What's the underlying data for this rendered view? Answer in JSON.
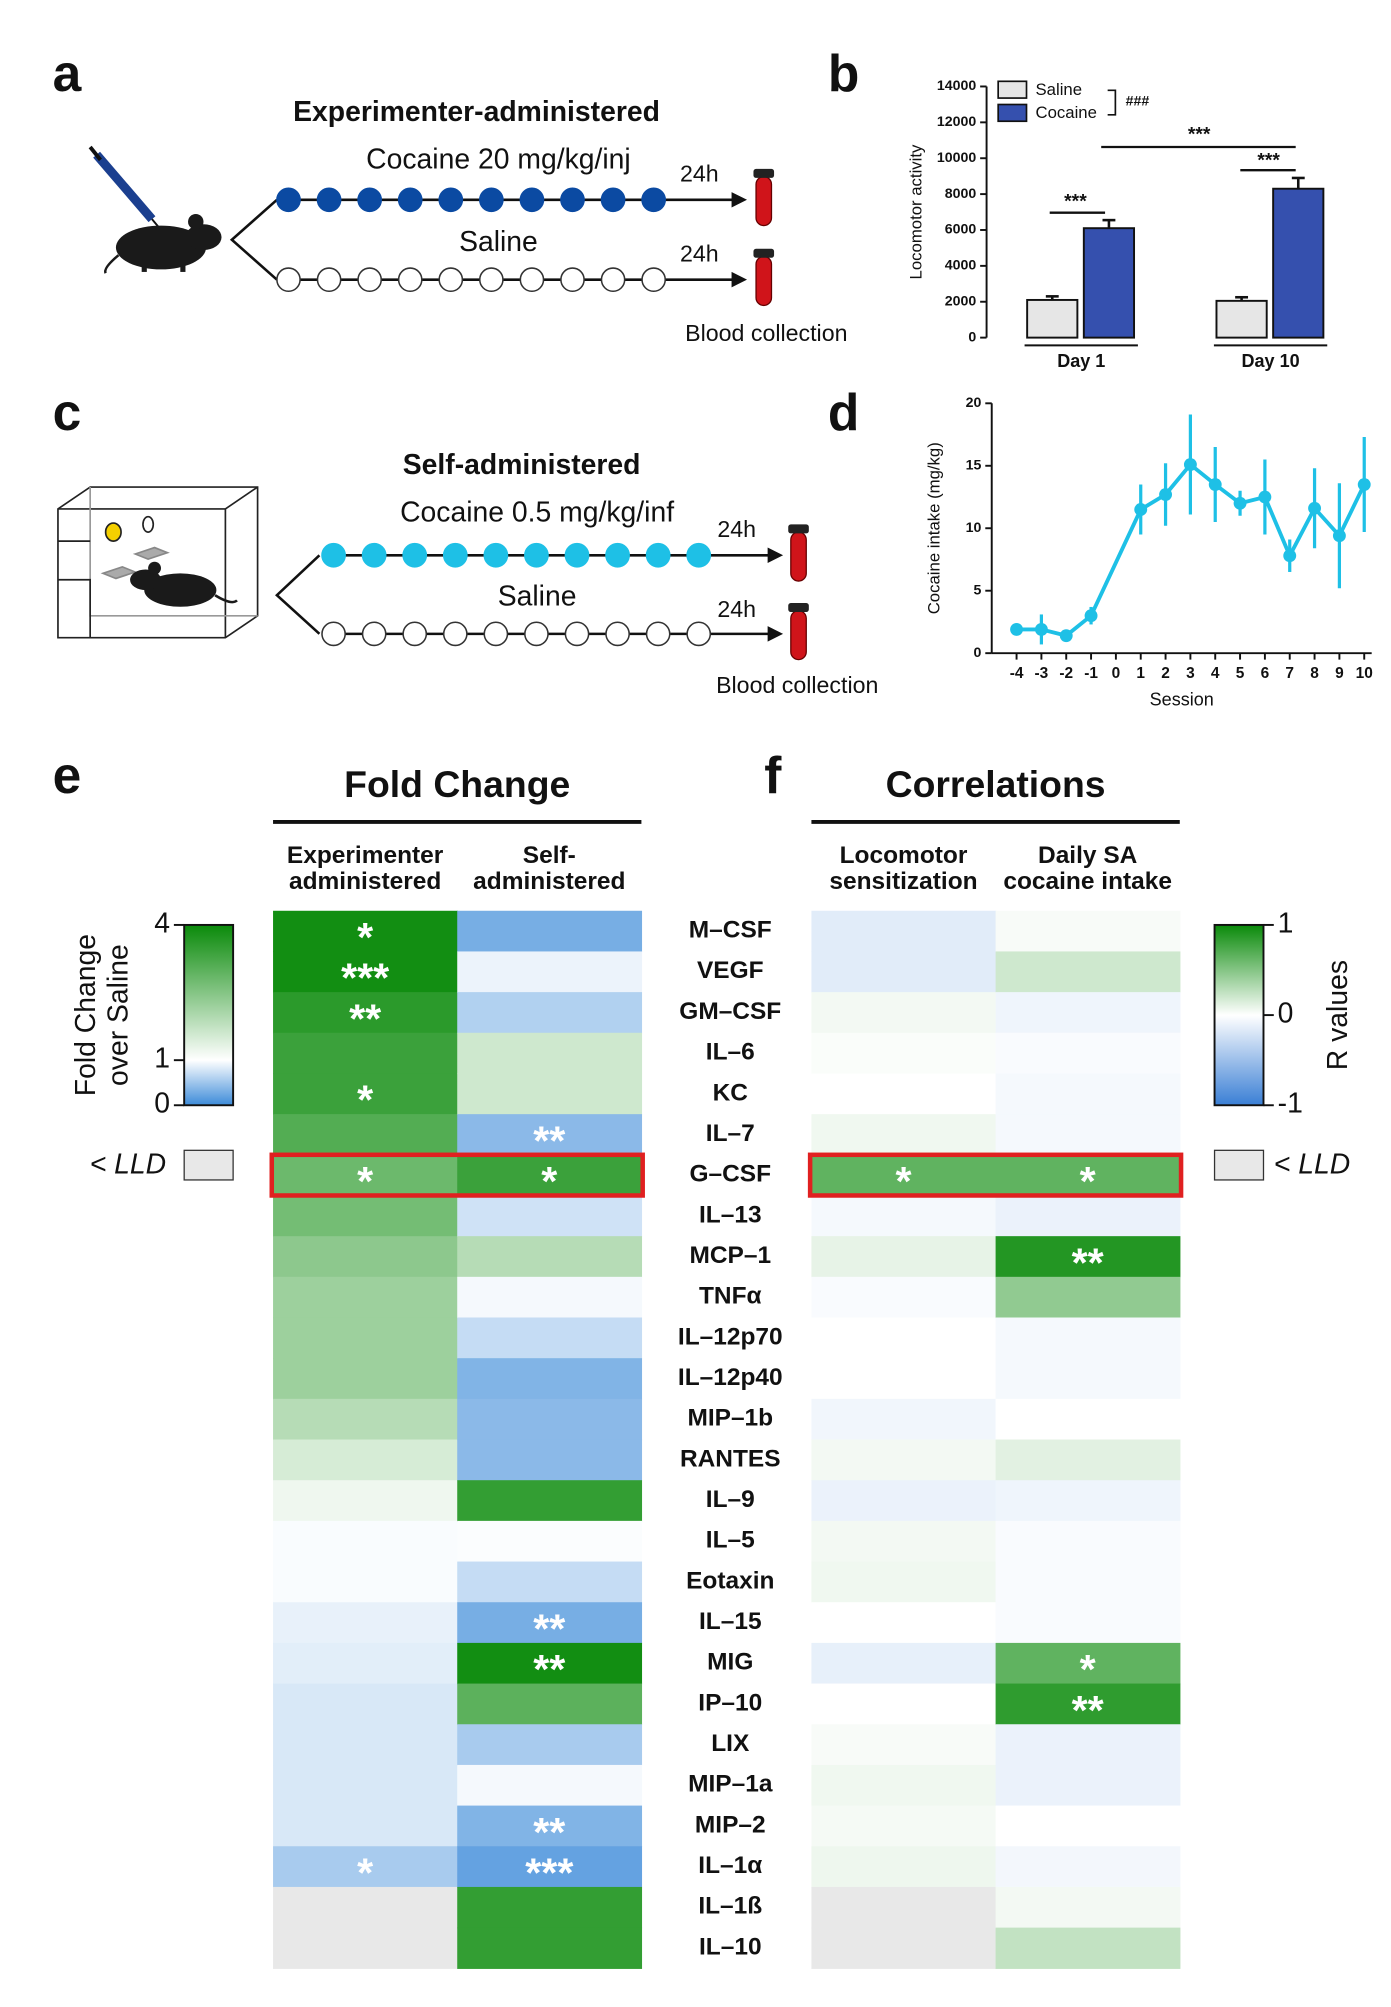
{
  "panel_labels": [
    "a",
    "b",
    "c",
    "d",
    "e",
    "f"
  ],
  "diagrams": [
    {
      "title": "Experimenter-administered",
      "drug": "Cocaine 20 mg/kg/inj",
      "control": "Saline",
      "delay": [
        "24h",
        "24h"
      ],
      "caption": "Blood collection"
    },
    {
      "title": "Self-administered",
      "drug": "Cocaine 0.5 mg/kg/inf",
      "control": "Saline",
      "delay": [
        "24h",
        "24h"
      ],
      "caption": "Blood collection"
    }
  ],
  "rows": [
    "M–CSF",
    "VEGF",
    "GM–CSF",
    "IL–6",
    "KC",
    "IL–7",
    "G–CSF",
    "IL–13",
    "MCP–1",
    "TNFα",
    "IL–12p70",
    "IL–12p40",
    "MIP–1b",
    "RANTES",
    "IL–9",
    "IL–5",
    "Eotaxin",
    "IL–15",
    "MIG",
    "IP–10",
    "LIX",
    "MIP–1a",
    "MIP–2",
    "IL–1α",
    "IL–1ß",
    "IL–10"
  ],
  "chart_data": [
    {
      "type": "bar",
      "ylabel": "Locomotor activity",
      "categories": [
        "Day 1",
        "Day 10"
      ],
      "series": [
        {
          "name": "Saline",
          "color": "#e6e6e6",
          "values": [
            2100,
            2050
          ],
          "errors": [
            200,
            200
          ]
        },
        {
          "name": "Cocaine",
          "color": "#3550ae",
          "values": [
            6100,
            8300
          ],
          "errors": [
            450,
            600
          ]
        }
      ],
      "ylim": [
        0,
        14000
      ],
      "yticks": [
        0,
        2000,
        4000,
        6000,
        8000,
        10000,
        12000,
        14000
      ],
      "annotations": [
        "###",
        "***",
        "***",
        "***"
      ]
    },
    {
      "type": "line",
      "xlabel": "Session",
      "ylabel": "Cocaine intake (mg/kg)",
      "color": "#1ec0e6",
      "x": [
        -4,
        -3,
        -2,
        -1,
        1,
        2,
        3,
        4,
        5,
        6,
        7,
        8,
        9,
        10
      ],
      "values": [
        1.9,
        1.9,
        1.4,
        3.0,
        11.5,
        12.7,
        15.1,
        13.5,
        12.0,
        12.5,
        7.8,
        11.6,
        9.4,
        13.5
      ],
      "errors": [
        0.3,
        1.2,
        0.3,
        0.7,
        2.0,
        2.5,
        4.0,
        3.0,
        1.0,
        3.0,
        1.3,
        3.2,
        4.2,
        3.8
      ],
      "xlim": [
        -5,
        10.3
      ],
      "xticks": [
        -4,
        -3,
        -2,
        -1,
        0,
        1,
        2,
        3,
        4,
        5,
        6,
        7,
        8,
        9,
        10
      ],
      "ylim": [
        0,
        20
      ],
      "yticks": [
        0,
        5,
        10,
        15,
        20
      ]
    },
    {
      "type": "heatmap",
      "title": "Fold Change",
      "highlight": "G–CSF",
      "series": [
        {
          "name": [
            "Experimenter",
            "administered"
          ],
          "values": [
            3.9,
            3.9,
            3.6,
            3.4,
            3.4,
            3.1,
            2.8,
            2.7,
            2.4,
            2.2,
            2.2,
            2.2,
            1.9,
            1.5,
            1.2,
            0.97,
            0.97,
            0.88,
            0.85,
            0.8,
            0.8,
            0.8,
            0.8,
            0.55,
            null,
            null
          ],
          "annotations": [
            "*",
            "***",
            "**",
            null,
            "*",
            null,
            "*",
            null,
            null,
            null,
            null,
            null,
            null,
            null,
            null,
            null,
            null,
            null,
            null,
            null,
            null,
            null,
            null,
            "*",
            null,
            null
          ]
        },
        {
          "name": [
            "Self-",
            "administered"
          ],
          "values": [
            0.3,
            0.9,
            0.6,
            1.6,
            1.6,
            0.4,
            3.4,
            0.75,
            1.9,
            0.95,
            0.7,
            0.35,
            0.4,
            0.4,
            3.5,
            0.98,
            0.7,
            0.3,
            3.9,
            3.0,
            0.55,
            0.95,
            0.35,
            0.2,
            3.5,
            3.5
          ],
          "annotations": [
            null,
            null,
            null,
            null,
            null,
            "**",
            "*",
            null,
            null,
            null,
            null,
            null,
            null,
            null,
            null,
            null,
            null,
            "**",
            "**",
            null,
            null,
            null,
            "**",
            "***",
            null,
            null
          ]
        }
      ],
      "colorbar": {
        "title": [
          "Fold Change",
          "over Saline"
        ],
        "lim": [
          0,
          4
        ],
        "midpoint": 1,
        "ticks": [
          0,
          1,
          4
        ],
        "colors": [
          "#3d8bd9",
          "#ffffff",
          "#0a8a0a"
        ],
        "missing_label": "< LLD",
        "missing_color": "#e8e8e8"
      }
    },
    {
      "type": "heatmap",
      "title": "Correlations",
      "highlight": "G–CSF",
      "series": [
        {
          "name": [
            "Locomotor",
            "sensitization"
          ],
          "values": [
            -0.15,
            -0.15,
            0.05,
            0.02,
            0.0,
            0.06,
            0.65,
            -0.05,
            0.1,
            -0.03,
            0.0,
            0.0,
            -0.07,
            0.05,
            -0.1,
            0.05,
            0.06,
            0.0,
            -0.12,
            0.0,
            0.03,
            0.06,
            0.04,
            0.07,
            null,
            null
          ],
          "annotations": [
            null,
            null,
            null,
            null,
            null,
            null,
            "*",
            null,
            null,
            null,
            null,
            null,
            null,
            null,
            null,
            null,
            null,
            null,
            null,
            null,
            null,
            null,
            null,
            null,
            null,
            null
          ]
        },
        {
          "name": [
            "Daily SA",
            "cocaine intake"
          ],
          "values": [
            0.03,
            0.2,
            -0.08,
            -0.03,
            -0.05,
            -0.05,
            0.65,
            -0.1,
            0.9,
            0.45,
            -0.05,
            -0.05,
            0.0,
            0.12,
            -0.08,
            -0.03,
            -0.03,
            -0.03,
            0.65,
            0.85,
            -0.1,
            -0.1,
            0.0,
            -0.06,
            0.05,
            0.25
          ],
          "annotations": [
            null,
            null,
            null,
            null,
            null,
            null,
            "*",
            null,
            "**",
            null,
            null,
            null,
            null,
            null,
            null,
            null,
            null,
            null,
            "*",
            "**",
            null,
            null,
            null,
            null,
            null,
            null
          ]
        }
      ],
      "colorbar": {
        "title": [
          "R values"
        ],
        "lim": [
          -1,
          1
        ],
        "midpoint": 0,
        "ticks": [
          -1,
          0,
          1
        ],
        "colors": [
          "#3a7fd5",
          "#ffffff",
          "#0a8a0a"
        ],
        "missing_label": "< LLD",
        "missing_color": "#e8e8e8"
      }
    }
  ]
}
